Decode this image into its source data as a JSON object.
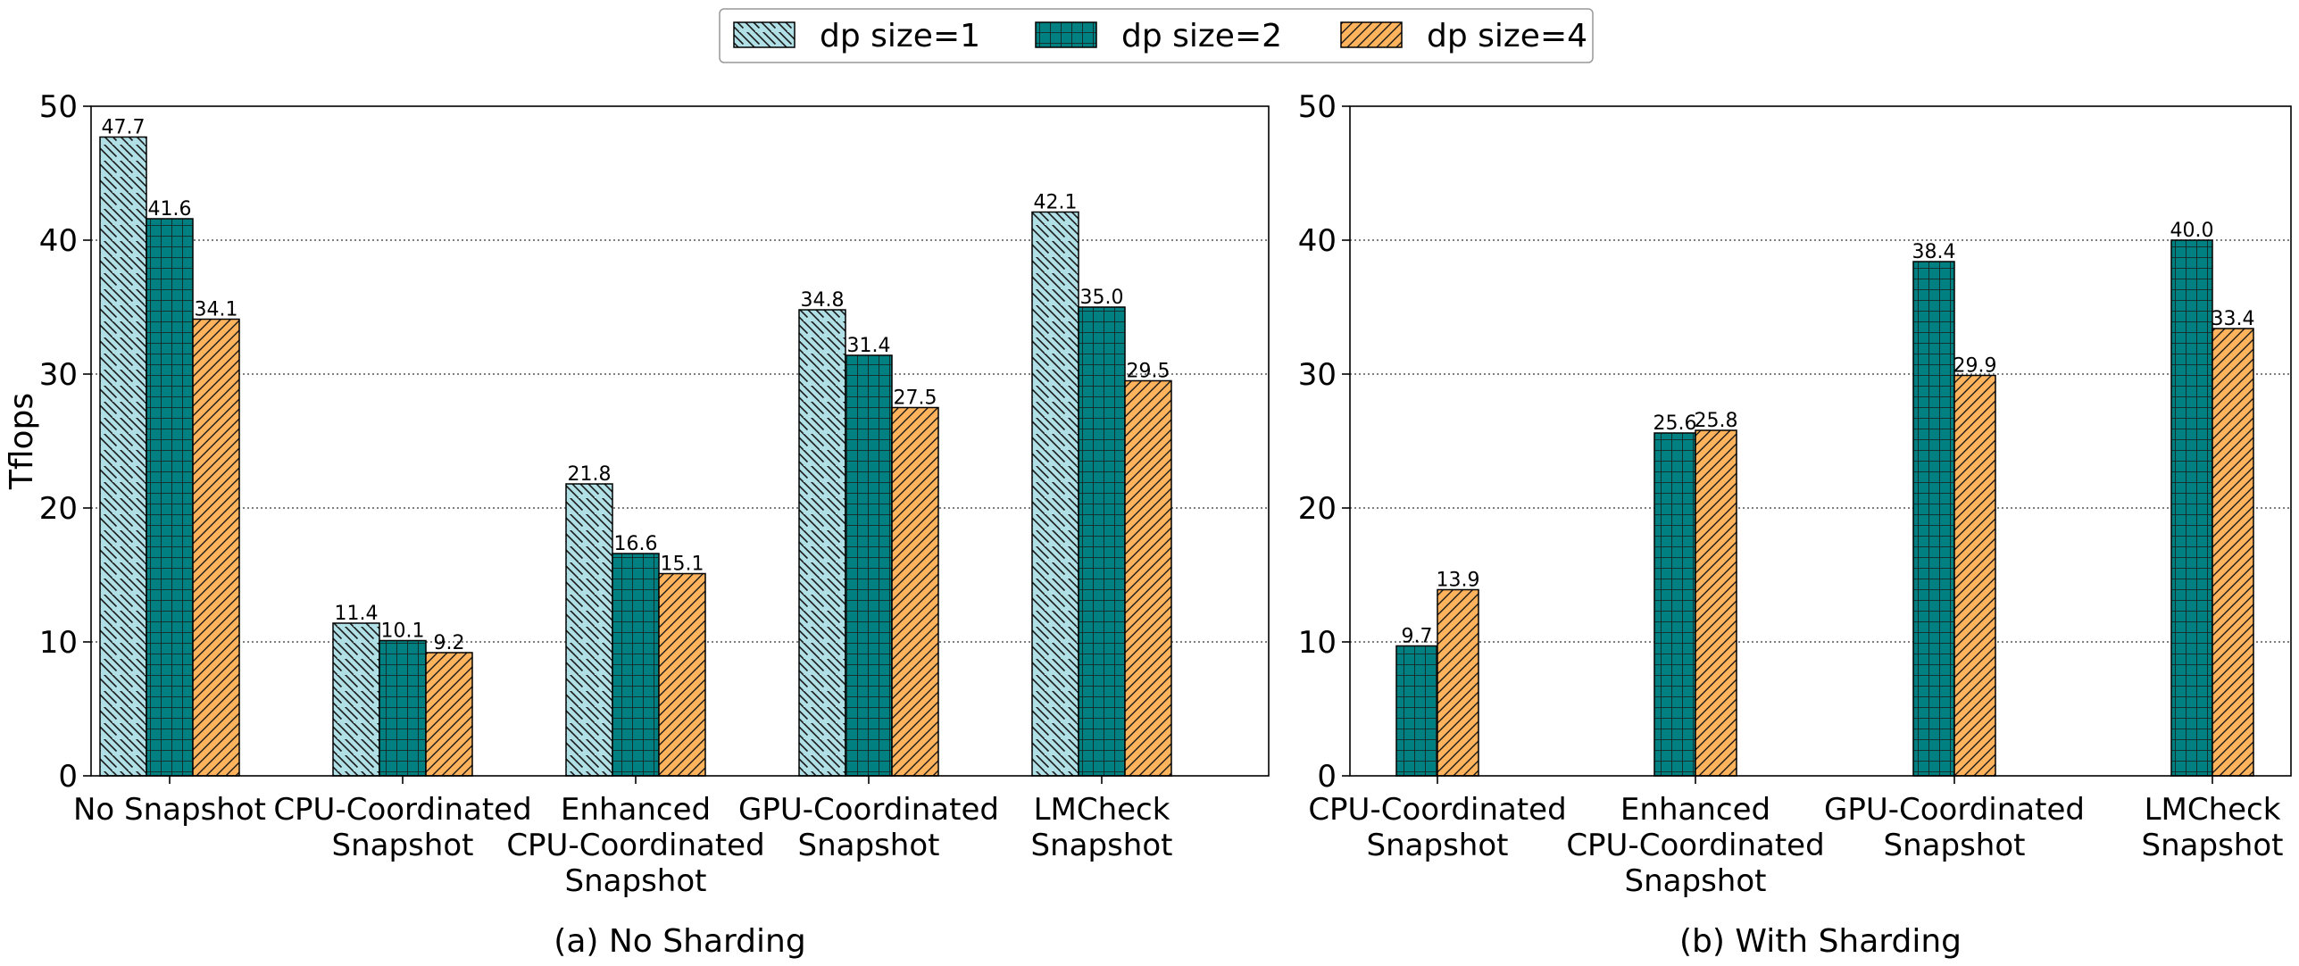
{
  "chart_data": {
    "type": "bar",
    "ylabel": "Tflops",
    "ylim": [
      0,
      50
    ],
    "yticks": [
      0,
      10,
      20,
      30,
      40,
      50
    ],
    "grid": "y-dotted",
    "legend": {
      "placement": "top-center",
      "entries": [
        {
          "name": "dp size=1",
          "color": "#b0e0e6",
          "pattern": "backslash"
        },
        {
          "name": "dp size=2",
          "color": "#008080",
          "pattern": "grid"
        },
        {
          "name": "dp size=4",
          "color": "#ffb35c",
          "pattern": "slash"
        }
      ]
    },
    "panels": [
      {
        "caption": "(a) No Sharding",
        "categories": [
          [
            "No Snapshot"
          ],
          [
            "CPU-Coordinated",
            "Snapshot"
          ],
          [
            "Enhanced",
            "CPU-Coordinated",
            "Snapshot"
          ],
          [
            "GPU-Coordinated",
            "Snapshot"
          ],
          [
            "LMCheck",
            "Snapshot"
          ]
        ],
        "series": [
          {
            "name": "dp size=1",
            "values": [
              47.7,
              11.4,
              21.8,
              34.8,
              42.1
            ]
          },
          {
            "name": "dp size=2",
            "values": [
              41.6,
              10.1,
              16.6,
              31.4,
              35.0
            ]
          },
          {
            "name": "dp size=4",
            "values": [
              34.1,
              9.2,
              15.1,
              27.5,
              29.5
            ]
          }
        ]
      },
      {
        "caption": "(b) With Sharding",
        "categories": [
          [
            "CPU-Coordinated",
            "Snapshot"
          ],
          [
            "Enhanced",
            "CPU-Coordinated",
            "Snapshot"
          ],
          [
            "GPU-Coordinated",
            "Snapshot"
          ],
          [
            "LMCheck",
            "Snapshot"
          ]
        ],
        "series": [
          {
            "name": "dp size=2",
            "values": [
              9.7,
              25.6,
              38.4,
              40.0
            ]
          },
          {
            "name": "dp size=4",
            "values": [
              13.9,
              25.8,
              29.9,
              33.4
            ]
          }
        ]
      }
    ]
  }
}
